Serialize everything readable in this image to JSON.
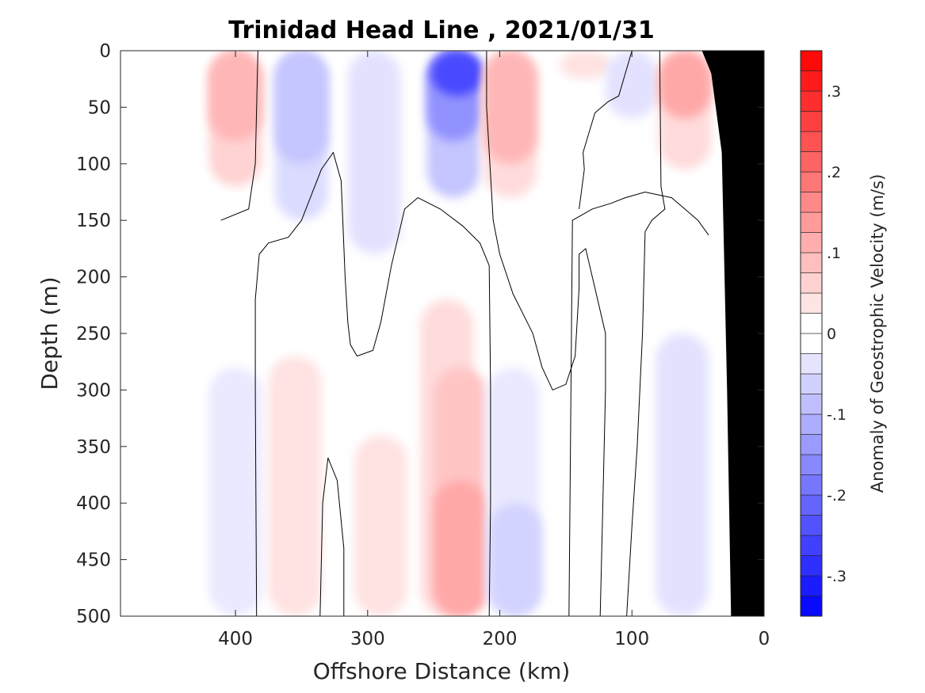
{
  "chart_data": {
    "type": "heatmap",
    "title": "Trinidad Head Line , 2021/01/31",
    "xlabel": "Offshore Distance (km)",
    "ylabel": "Depth (m)",
    "xlim": [
      487,
      0
    ],
    "ylim": [
      0,
      500
    ],
    "x_reversed": true,
    "y_reversed": true,
    "x_ticks": [
      400,
      300,
      200,
      100,
      0
    ],
    "y_ticks": [
      0,
      50,
      100,
      150,
      200,
      250,
      300,
      350,
      400,
      450,
      500
    ],
    "colorbar": {
      "label": "Anomaly of Geostrophic Velocity (m/s)",
      "range": [
        -0.35,
        0.35
      ],
      "level_step": 0.025,
      "ticks": [
        -0.3,
        -0.2,
        -0.1,
        0,
        0.1,
        0.2,
        0.3
      ],
      "negative_color": "#0000ff",
      "positive_color": "#ff0000",
      "zero_color": "#ffffff"
    },
    "features": [
      {
        "label": "Shelf/Topography",
        "color": "#000000",
        "boundary": [
          [
            25,
            500
          ],
          [
            28,
            300
          ],
          [
            32,
            90
          ],
          [
            40,
            20
          ],
          [
            47,
            0
          ],
          [
            0,
            0
          ],
          [
            0,
            500
          ]
        ]
      }
    ],
    "anomaly_cells": [
      {
        "x": 400,
        "depth_top": 0,
        "depth_bottom": 120,
        "value": 0.06
      },
      {
        "x": 400,
        "depth_top": 0,
        "depth_bottom": 80,
        "value": 0.1
      },
      {
        "x": 400,
        "depth_top": 280,
        "depth_bottom": 500,
        "value": -0.03
      },
      {
        "x": 350,
        "depth_top": 0,
        "depth_bottom": 150,
        "value": -0.05
      },
      {
        "x": 350,
        "depth_top": 0,
        "depth_bottom": 100,
        "value": -0.08
      },
      {
        "x": 355,
        "depth_top": 270,
        "depth_bottom": 500,
        "value": 0.04
      },
      {
        "x": 295,
        "depth_top": 0,
        "depth_bottom": 180,
        "value": -0.04
      },
      {
        "x": 235,
        "depth_top": 0,
        "depth_bottom": 130,
        "value": -0.08
      },
      {
        "x": 235,
        "depth_top": 0,
        "depth_bottom": 80,
        "value": -0.15
      },
      {
        "x": 232,
        "depth_top": 0,
        "depth_bottom": 40,
        "value": -0.25
      },
      {
        "x": 290,
        "depth_top": 340,
        "depth_bottom": 500,
        "value": 0.04
      },
      {
        "x": 240,
        "depth_top": 220,
        "depth_bottom": 500,
        "value": 0.05
      },
      {
        "x": 230,
        "depth_top": 280,
        "depth_bottom": 500,
        "value": 0.08
      },
      {
        "x": 230,
        "depth_top": 380,
        "depth_bottom": 500,
        "value": 0.12
      },
      {
        "x": 192,
        "depth_top": 0,
        "depth_bottom": 130,
        "value": 0.05
      },
      {
        "x": 192,
        "depth_top": 0,
        "depth_bottom": 100,
        "value": 0.1
      },
      {
        "x": 190,
        "depth_top": 280,
        "depth_bottom": 500,
        "value": -0.03
      },
      {
        "x": 188,
        "depth_top": 400,
        "depth_bottom": 500,
        "value": -0.06
      },
      {
        "x": 135,
        "depth_top": 0,
        "depth_bottom": 25,
        "value": 0.04
      },
      {
        "x": 100,
        "depth_top": 0,
        "depth_bottom": 60,
        "value": -0.04
      },
      {
        "x": 60,
        "depth_top": 0,
        "depth_bottom": 105,
        "value": 0.05
      },
      {
        "x": 60,
        "depth_top": 0,
        "depth_bottom": 60,
        "value": 0.12
      },
      {
        "x": 62,
        "depth_top": 250,
        "depth_bottom": 500,
        "value": -0.04
      }
    ],
    "zero_contours": [
      [
        [
          411,
          150
        ],
        [
          390,
          140
        ],
        [
          385,
          100
        ],
        [
          383,
          0
        ]
      ],
      [
        [
          384,
          500
        ],
        [
          385,
          300
        ],
        [
          385,
          220
        ],
        [
          382,
          180
        ],
        [
          375,
          170
        ],
        [
          360,
          165
        ],
        [
          350,
          150
        ],
        [
          335,
          105
        ],
        [
          326,
          90
        ],
        [
          320,
          115
        ],
        [
          317,
          200
        ],
        [
          315,
          240
        ],
        [
          313,
          260
        ],
        [
          308,
          270
        ],
        [
          296,
          265
        ],
        [
          290,
          240
        ],
        [
          282,
          190
        ],
        [
          272,
          140
        ],
        [
          262,
          130
        ],
        [
          245,
          140
        ],
        [
          228,
          155
        ],
        [
          215,
          170
        ],
        [
          208,
          190
        ],
        [
          207,
          300
        ],
        [
          207,
          400
        ],
        [
          208,
          500
        ]
      ],
      [
        [
          336,
          500
        ],
        [
          334,
          400
        ],
        [
          330,
          360
        ],
        [
          323,
          380
        ],
        [
          318,
          440
        ],
        [
          318,
          500
        ]
      ],
      [
        [
          210,
          0
        ],
        [
          210,
          50
        ],
        [
          205,
          150
        ],
        [
          200,
          180
        ],
        [
          190,
          215
        ],
        [
          175,
          250
        ],
        [
          168,
          280
        ],
        [
          160,
          300
        ],
        [
          150,
          295
        ],
        [
          143,
          270
        ],
        [
          140,
          210
        ],
        [
          140,
          180
        ],
        [
          135,
          175
        ],
        [
          128,
          210
        ],
        [
          120,
          250
        ],
        [
          120,
          300
        ],
        [
          122,
          400
        ],
        [
          124,
          500
        ]
      ],
      [
        [
          140,
          140
        ],
        [
          136,
          105
        ],
        [
          137,
          90
        ],
        [
          128,
          55
        ],
        [
          118,
          45
        ],
        [
          110,
          40
        ],
        [
          100,
          0
        ]
      ],
      [
        [
          79,
          0
        ],
        [
          78,
          120
        ],
        [
          75,
          140
        ],
        [
          85,
          150
        ],
        [
          90,
          160
        ],
        [
          92,
          250
        ],
        [
          96,
          350
        ],
        [
          100,
          420
        ],
        [
          104,
          500
        ]
      ],
      [
        [
          148,
          550
        ],
        [
          145,
          150
        ],
        [
          130,
          140
        ],
        [
          116,
          135
        ],
        [
          105,
          130
        ],
        [
          90,
          125
        ],
        [
          70,
          130
        ],
        [
          60,
          140
        ],
        [
          50,
          150
        ],
        [
          42,
          163
        ]
      ]
    ]
  }
}
